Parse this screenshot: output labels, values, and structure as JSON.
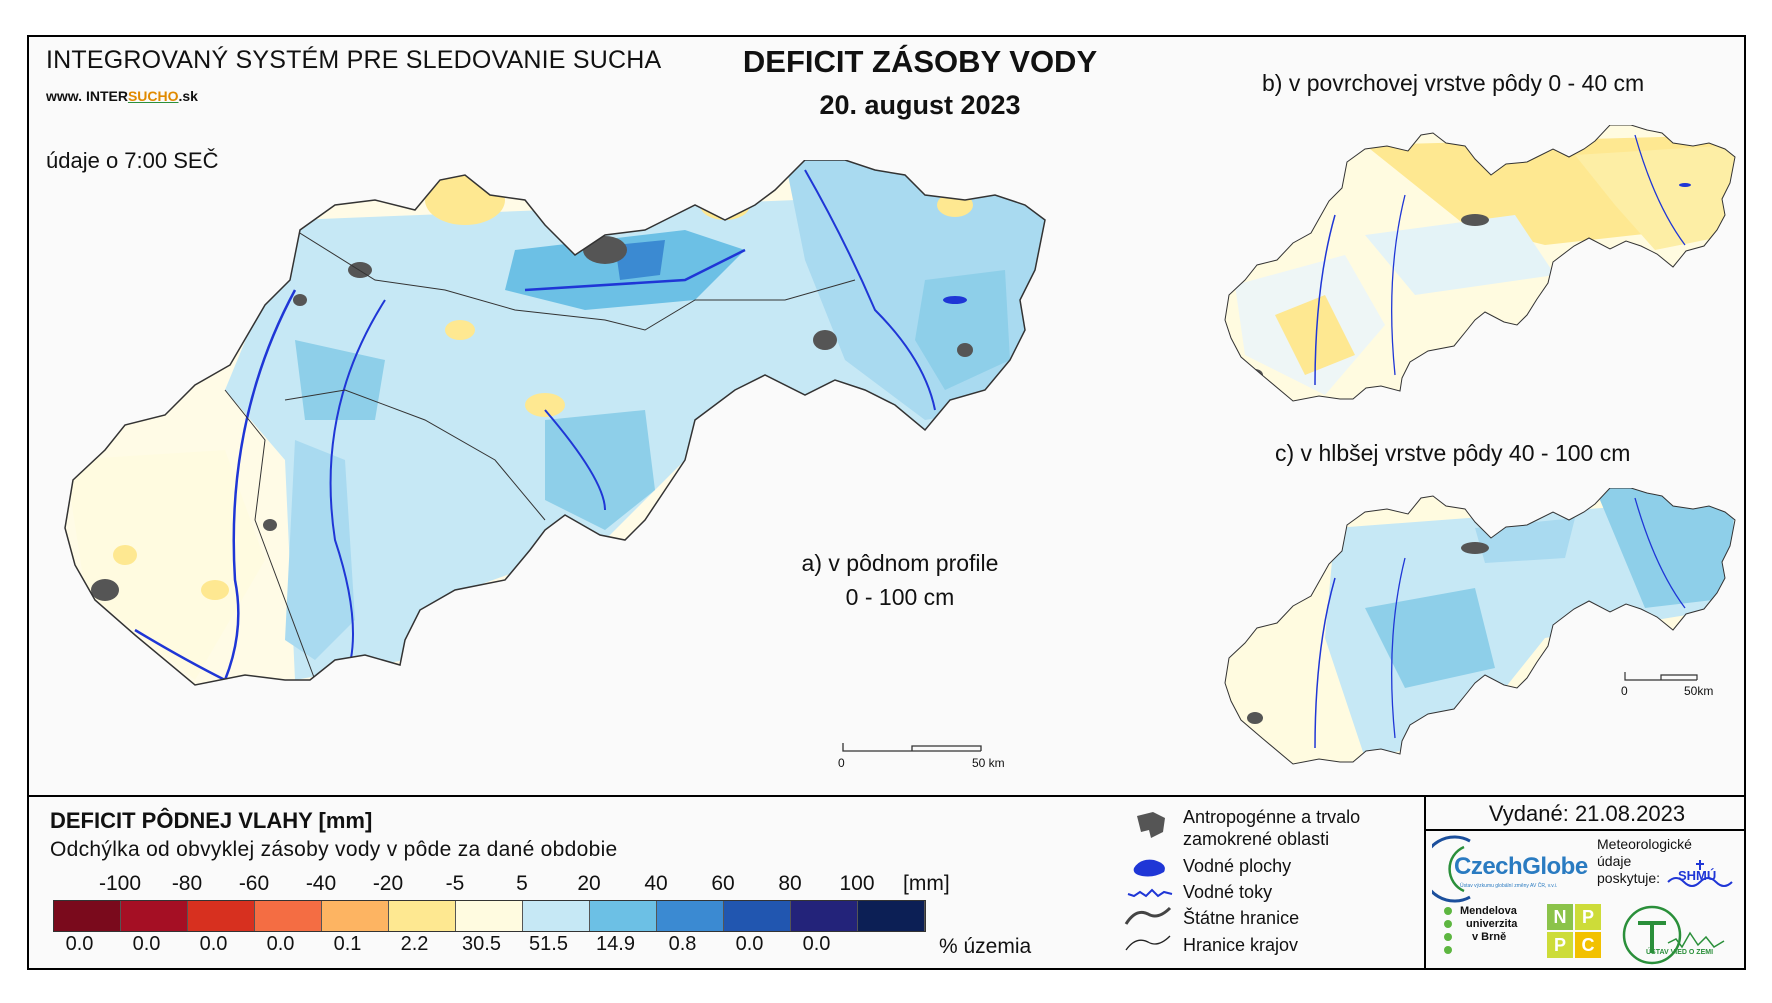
{
  "header": {
    "system_name": "INTEGROVANÝ SYSTÉM PRE SLEDOVANIE SUCHA",
    "url_prefix": "www.",
    "url_brand_1": "INTER",
    "url_brand_2": "SUCHO",
    "url_suffix": ".sk",
    "data_time": "údaje o 7:00 SEČ",
    "title": "DEFICIT ZÁSOBY VODY",
    "date": "20. august 2023"
  },
  "maps": {
    "a_label_line1": "a) v pôdnom profile",
    "a_label_line2": "0 - 100 cm",
    "b_label": "b) v povrchovej vrstve pôdy 0 - 40 cm",
    "c_label": "c) v hlbšej vrstve pôdy 40 - 100 cm",
    "scale_main_zero": "0",
    "scale_main_end": "50 km",
    "scale_small_zero": "0",
    "scale_small_end": "50km"
  },
  "legend": {
    "title": "DEFICIT PÔDNEJ VLAHY [mm]",
    "subtitle": "Odchýlka od obvyklej zásoby vody v pôde za dané obdobie",
    "unit": "[mm]",
    "pct_unit": "% územia",
    "ticks": [
      "-100",
      "-80",
      "-60",
      "-40",
      "-20",
      "-5",
      "5",
      "20",
      "40",
      "60",
      "80",
      "100"
    ],
    "colors": [
      "#7a0a1c",
      "#a50f24",
      "#d7301f",
      "#f46d43",
      "#fdb462",
      "#fee891",
      "#fffbe0",
      "#c6e8f5",
      "#6cc0e5",
      "#3b8ad2",
      "#2156b0",
      "#23237a",
      "#0c1f55"
    ],
    "percentages": [
      "0.0",
      "0.0",
      "0.0",
      "0.0",
      "0.1",
      "2.2",
      "30.5",
      "51.5",
      "14.9",
      "0.8",
      "0.0",
      "0.0"
    ],
    "items": {
      "anthropogenic_1": "Antropogénne a trvalo",
      "anthropogenic_2": "zamokrené oblasti",
      "water_bodies": "Vodné plochy",
      "rivers": "Vodné toky",
      "state_border": "Štátne hranice",
      "region_border": "Hranice krajov"
    }
  },
  "footer": {
    "issued": "Vydané: 21.08.2023",
    "czechglobe": "CzechGlobe",
    "czechglobe_sub": "Ústav výzkumu globální změny AV ČR, v.v.i.",
    "meteo_1": "Meteorologické",
    "meteo_2": "údaje",
    "meteo_3": "poskytuje:",
    "shmu": "SHMÚ",
    "mendel_1": "Mendelova",
    "mendel_2": "univerzita",
    "mendel_3": "v Brně",
    "nppc": [
      "N",
      "P",
      "P",
      "C"
    ],
    "uvz": "ÚSTAV VIED O ZEMI"
  }
}
